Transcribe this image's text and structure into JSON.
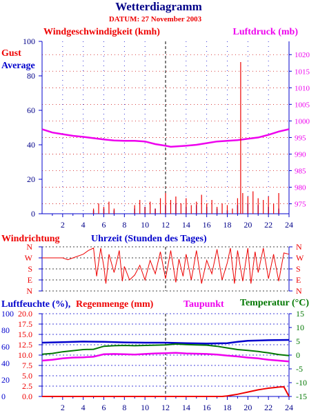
{
  "header": {
    "title": "Wetterdiagramm",
    "date": "DATUM: 27 November 2003"
  },
  "colors": {
    "red": "#ee0000",
    "blue": "#0000cc",
    "magenta": "#ee00ee",
    "green": "#007700",
    "navy": "#000088",
    "darkred": "#cc0000"
  },
  "chart_data": [
    {
      "type": "line",
      "id": "wind-pressure",
      "labels": {
        "left_title": "Windgeschwindigkeit (kmh)",
        "right_title": "Luftdruck (mb)",
        "gust": "Gust",
        "average": "Average"
      },
      "xlim": [
        0,
        24
      ],
      "x_ticks": [
        "2",
        "4",
        "6",
        "8",
        "10",
        "12",
        "14",
        "16",
        "18",
        "20",
        "22",
        "24"
      ],
      "y_left_lim": [
        0,
        100
      ],
      "y_left_ticks": [
        "0",
        "20",
        "40",
        "60",
        "80",
        "100"
      ],
      "y_right_lim": [
        972,
        1024
      ],
      "y_right_ticks": [
        "975",
        "980",
        "985",
        "990",
        "995",
        "1000",
        "1005",
        "1010",
        "1015",
        "1020"
      ],
      "series": [
        {
          "name": "Luftdruck (mb)",
          "axis": "right",
          "x": [
            0,
            0.5,
            1,
            2,
            3,
            4,
            5,
            6,
            7,
            8,
            9,
            10,
            11,
            12,
            12.5,
            13,
            14,
            15,
            16,
            17,
            18,
            19,
            20,
            21,
            22,
            23,
            24
          ],
          "values": [
            997.5,
            997,
            996.5,
            996,
            995.5,
            995.2,
            994.8,
            994.4,
            994.1,
            994,
            994,
            993.8,
            993,
            992.5,
            992.2,
            992.3,
            992.5,
            992.8,
            993.3,
            993.8,
            994,
            994.2,
            994.6,
            995,
            995.8,
            996.8,
            997.5
          ]
        },
        {
          "name": "Gust",
          "axis": "left",
          "x": [
            5,
            5.5,
            6,
            6.5,
            7,
            9,
            9.5,
            10,
            10.5,
            11,
            11.5,
            12,
            12.5,
            13,
            13.5,
            14,
            14.5,
            15,
            15.5,
            16,
            16.5,
            17,
            17.5,
            18,
            18.5,
            19,
            19.3,
            19.5,
            20,
            20.5,
            21,
            21.5,
            22,
            22.5,
            23
          ],
          "values": [
            3,
            6,
            4,
            7,
            3,
            5,
            8,
            4,
            7,
            3,
            9,
            12,
            8,
            10,
            6,
            9,
            5,
            7,
            11,
            6,
            8,
            4,
            6,
            5,
            3,
            9,
            88,
            12,
            10,
            13,
            9,
            8,
            10,
            6,
            12
          ]
        },
        {
          "name": "Average",
          "axis": "left",
          "x": [
            5,
            6,
            7,
            9,
            10,
            11,
            12,
            13,
            14,
            15,
            16,
            17,
            18,
            19,
            20,
            21,
            22,
            23
          ],
          "values": [
            2,
            3,
            2,
            3,
            4,
            3,
            5,
            6,
            4,
            5,
            4,
            3,
            2,
            5,
            6,
            5,
            4,
            3
          ]
        }
      ]
    },
    {
      "type": "line",
      "id": "wind-direction",
      "labels": {
        "left_title": "Windrichtung",
        "x_title": "Uhrzeit (Stunden des Tages)"
      },
      "xlim": [
        0,
        24
      ],
      "directions": [
        "N",
        "W",
        "S",
        "E",
        "N"
      ],
      "series": [
        {
          "name": "Windrichtung",
          "x": [
            0,
            2,
            2.5,
            3,
            4,
            4.5,
            5,
            5.3,
            5.7,
            6,
            6.2,
            6.5,
            7,
            7.5,
            7.8,
            8,
            8.5,
            9,
            9.5,
            10,
            10.5,
            11,
            11.5,
            12,
            12.5,
            13,
            13.3,
            13.7,
            14,
            14.5,
            15,
            15.5,
            16,
            16.5,
            17,
            17.5,
            18,
            18.3,
            18.7,
            19,
            19.5,
            20,
            20.3,
            20.7,
            21,
            21.5,
            22,
            22.5,
            23,
            23.5,
            24
          ],
          "values": [
            270,
            270,
            255,
            270,
            300,
            330,
            350,
            120,
            350,
            200,
            60,
            300,
            150,
            330,
            80,
            200,
            90,
            130,
            210,
            90,
            250,
            140,
            320,
            100,
            330,
            70,
            260,
            120,
            300,
            90,
            330,
            60,
            250,
            140,
            340,
            90,
            230,
            350,
            60,
            330,
            80,
            350,
            60,
            320,
            150,
            350,
            100,
            300,
            80,
            310,
            300
          ]
        }
      ]
    },
    {
      "type": "line",
      "id": "humidity-rain-temp",
      "labels": {
        "humidity": "Luftfeuchte (%),",
        "rain": "Regenmenge (mm)",
        "dewpoint": "Taupunkt",
        "temperature": "Temperatur (°C)"
      },
      "xlim": [
        0,
        24
      ],
      "x_ticks": [
        "2",
        "4",
        "6",
        "8",
        "10",
        "12",
        "14",
        "16",
        "18",
        "20",
        "22",
        "24"
      ],
      "y_left_humidity_ticks": [
        "0",
        "20",
        "40",
        "60",
        "80",
        "100"
      ],
      "y_left_rain_ticks": [
        "0.0",
        "2.5",
        "5.0",
        "7.5",
        "10.0",
        "12.5",
        "15.0",
        "17.5",
        "20.0"
      ],
      "y_right_ticks": [
        "-15",
        "-10",
        "-5",
        "0",
        "5",
        "10",
        "15"
      ],
      "y_right_lim": [
        -15,
        15
      ],
      "series": [
        {
          "name": "Luftfeuchte (%)",
          "axis": "right_scale",
          "x": [
            0,
            2,
            4,
            6,
            8,
            10,
            12,
            13,
            14,
            16,
            18,
            19,
            20,
            22,
            24
          ],
          "values": [
            4.5,
            4.7,
            4.9,
            4.8,
            4.6,
            4.5,
            4.5,
            4.4,
            4.3,
            4.2,
            4.3,
            4.8,
            5.2,
            5.4,
            5.5
          ]
        },
        {
          "name": "Temperatur (°C)",
          "axis": "right_scale",
          "x": [
            0,
            1,
            2,
            3,
            4,
            5,
            6,
            7,
            8,
            9,
            10,
            11,
            12,
            13,
            14,
            15,
            16,
            17,
            18,
            19,
            20,
            21,
            22,
            23,
            24
          ],
          "values": [
            0.3,
            0.6,
            1.2,
            1.6,
            2.0,
            2.1,
            3.2,
            3.4,
            3.5,
            3.4,
            3.5,
            3.6,
            3.7,
            4.0,
            3.8,
            3.7,
            3.6,
            3.2,
            2.6,
            2.0,
            1.7,
            1.3,
            0.8,
            0.2,
            -0.2
          ]
        },
        {
          "name": "Taupunkt",
          "axis": "right_scale",
          "x": [
            0,
            1,
            2,
            3,
            4,
            5,
            6,
            7,
            8,
            9,
            10,
            11,
            12,
            13,
            14,
            15,
            16,
            17,
            18,
            19,
            20,
            21,
            22,
            23,
            24
          ],
          "values": [
            -2.0,
            -1.7,
            -1.2,
            -0.9,
            -0.8,
            -0.6,
            0.3,
            0.4,
            0.3,
            0.2,
            0.4,
            0.6,
            0.7,
            0.8,
            0.6,
            0.5,
            0.4,
            0.2,
            -0.2,
            -0.5,
            -0.9,
            -1.2,
            -1.7,
            -2.0,
            -2.3
          ]
        },
        {
          "name": "Regenmenge (mm)",
          "axis": "right_scale",
          "x": [
            0,
            17,
            17.5,
            18,
            18.5,
            19,
            19.5,
            20,
            20.5,
            21,
            21.5,
            22,
            22.5,
            23,
            23.5,
            24
          ],
          "values": [
            -15,
            -15,
            -15,
            -14.8,
            -14.5,
            -14.2,
            -13.8,
            -13.4,
            -13.0,
            -12.6,
            -12.3,
            -12.0,
            -11.8,
            -11.6,
            -11.5,
            -15
          ]
        }
      ]
    }
  ]
}
